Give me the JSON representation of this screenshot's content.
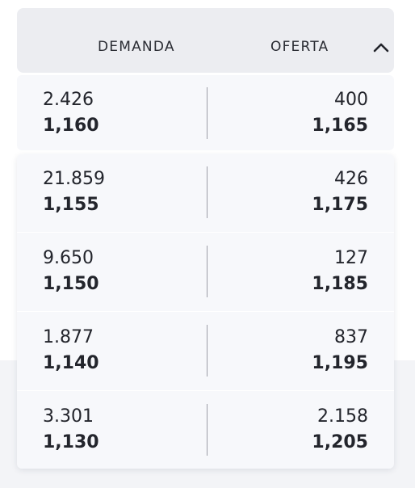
{
  "header": {
    "demand_label": "DEMANDA",
    "offer_label": "OFERTA",
    "toggle_icon": "chevron-up-icon"
  },
  "rows": [
    {
      "bid_qty": "2.426",
      "bid_price": "1,160",
      "ask_qty": "400",
      "ask_price": "1,165"
    },
    {
      "bid_qty": "21.859",
      "bid_price": "1,155",
      "ask_qty": "426",
      "ask_price": "1,175"
    },
    {
      "bid_qty": "9.650",
      "bid_price": "1,150",
      "ask_qty": "127",
      "ask_price": "1,185"
    },
    {
      "bid_qty": "1.877",
      "bid_price": "1,140",
      "ask_qty": "837",
      "ask_price": "1,195"
    },
    {
      "bid_qty": "3.301",
      "bid_price": "1,130",
      "ask_qty": "2.158",
      "ask_price": "1,205"
    }
  ],
  "colors": {
    "header_bg": "#ecedf1",
    "card_bg": "#f7f8fb",
    "text": "#23252c",
    "separator": "#9c9ea6"
  }
}
